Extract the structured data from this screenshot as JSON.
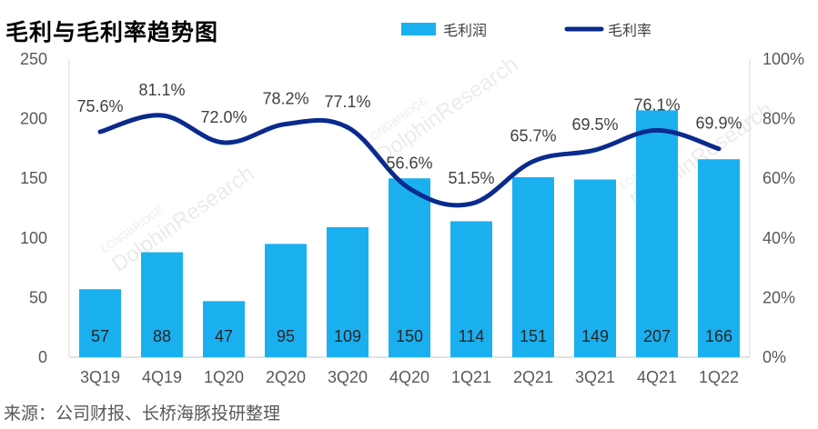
{
  "title": "毛利与毛利率趋势图",
  "source": "来源：公司财报、长桥海豚投研整理",
  "colors": {
    "bar": "#1ab0f0",
    "line": "#0a2a8c",
    "axis": "#d9d9d9"
  },
  "chart_data": {
    "type": "bar",
    "categories": [
      "3Q19",
      "4Q19",
      "1Q20",
      "2Q20",
      "3Q20",
      "4Q20",
      "1Q21",
      "2Q21",
      "3Q21",
      "4Q21",
      "1Q22"
    ],
    "series": [
      {
        "name": "毛利润",
        "type": "bar",
        "axis": "left",
        "values": [
          57,
          88,
          47,
          95,
          109,
          150,
          114,
          151,
          149,
          207,
          166
        ]
      },
      {
        "name": "毛利率",
        "type": "line",
        "axis": "right",
        "values": [
          75.6,
          81.1,
          72.0,
          78.2,
          77.1,
          56.6,
          51.5,
          65.7,
          69.5,
          76.1,
          69.9
        ],
        "labels": [
          "75.6%",
          "81.1%",
          "72.0%",
          "78.2%",
          "77.1%",
          "56.6%",
          "51.5%",
          "65.7%",
          "69.5%",
          "76.1%",
          "69.9%"
        ]
      }
    ],
    "y_left": {
      "ylim": [
        0,
        250
      ],
      "ticks": [
        "0",
        "50",
        "100",
        "150",
        "200",
        "250"
      ]
    },
    "y_right": {
      "ylim": [
        0,
        100
      ],
      "ticks": [
        "0%",
        "20%",
        "40%",
        "60%",
        "80%",
        "100%"
      ]
    },
    "legend": {
      "placement": "top-right",
      "entries": [
        "毛利润",
        "毛利率"
      ]
    },
    "grid": false,
    "watermark": [
      "LONGBRIDGE",
      "DolphinResearch"
    ]
  }
}
